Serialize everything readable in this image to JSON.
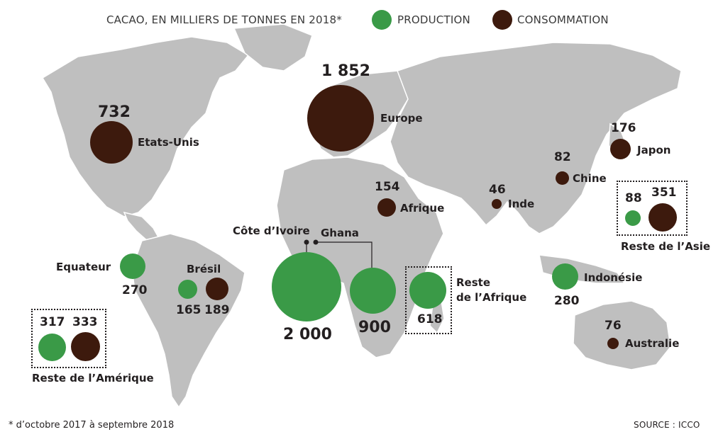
{
  "legend": {
    "title": "CACAO, EN MILLIERS DE TONNES EN 2018*",
    "production_label": "PRODUCTION",
    "consommation_label": "CONSOMMATION"
  },
  "colors": {
    "production": "#3a9a47",
    "consommation": "#3d1a0d",
    "land": "#bfbfbf",
    "border": "#ffffff"
  },
  "places": {
    "etats_unis": {
      "name": "Etats-Unis",
      "value": "732",
      "type": "consommation"
    },
    "europe": {
      "name": "Europe",
      "value": "1 852",
      "type": "consommation"
    },
    "afrique": {
      "name": "Afrique",
      "value": "154",
      "type": "consommation"
    },
    "inde": {
      "name": "Inde",
      "value": "46",
      "type": "consommation"
    },
    "chine": {
      "name": "Chine",
      "value": "82",
      "type": "consommation"
    },
    "japon": {
      "name": "Japon",
      "value": "176",
      "type": "consommation"
    },
    "reste_asie": {
      "name": "Reste de l’Asie",
      "production": "88",
      "consommation": "351"
    },
    "indonesie": {
      "name": "Indonésie",
      "value": "280",
      "type": "production"
    },
    "australie": {
      "name": "Australie",
      "value": "76",
      "type": "consommation"
    },
    "equateur": {
      "name": "Equateur",
      "value": "270",
      "type": "production"
    },
    "bresil": {
      "name": "Brésil",
      "production": "165",
      "consommation": "189"
    },
    "reste_amerique": {
      "name": "Reste de l’Amérique",
      "production": "317",
      "consommation": "333"
    },
    "cote_ivoire": {
      "name": "Côte d’Ivoire",
      "value": "2 000",
      "type": "production"
    },
    "ghana": {
      "name": "Ghana",
      "value": "900",
      "type": "production"
    },
    "reste_afrique": {
      "name": "Reste\nde l’Afrique",
      "value": "618",
      "type": "production"
    }
  },
  "footnote": "* d’octobre 2017 à septembre 2018",
  "source": "SOURCE : ICCO"
}
